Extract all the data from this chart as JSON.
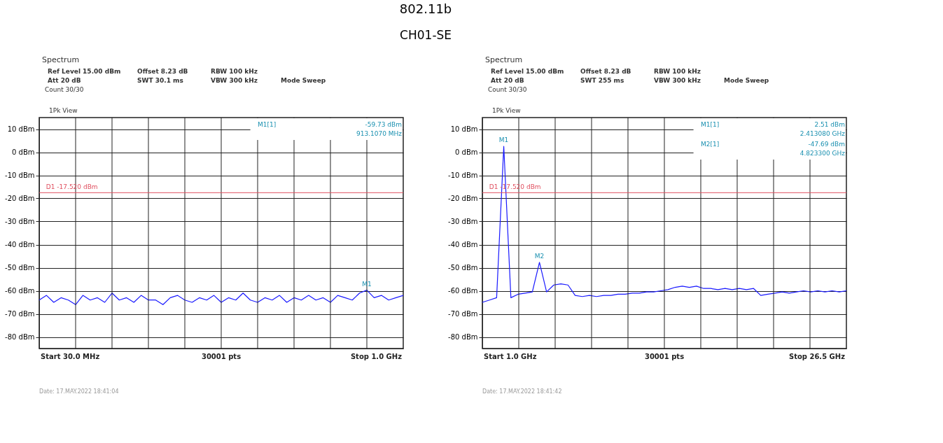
{
  "chart_data": [
    {
      "type": "line",
      "title": "802.11b",
      "subtitle": "CH01-SE",
      "categories": [
        null,
        null,
        null,
        null,
        null,
        null,
        null,
        null,
        null,
        null,
        null,
        null,
        null,
        null,
        null,
        null,
        null,
        null,
        null,
        null,
        null,
        null,
        null,
        null,
        null,
        null,
        null,
        null,
        null,
        null,
        null,
        null,
        null,
        null,
        null,
        null,
        null,
        null,
        null,
        null,
        null,
        null,
        null,
        null,
        null,
        null,
        null,
        null,
        null,
        null,
        null
      ],
      "series": [
        {
          "color": "#1a1aff",
          "values": [
            -64,
            -62,
            -65,
            -63,
            -64,
            -66,
            -62,
            -64,
            -63,
            -65,
            -61,
            -64,
            -63,
            -65,
            -62,
            -64,
            -64,
            -66,
            -63,
            -62,
            -64,
            -65,
            -63,
            -64,
            -62,
            -65,
            -63,
            -64,
            -61,
            -64,
            -65,
            -63,
            -64,
            -62,
            -65,
            -63,
            -64,
            -62,
            -64,
            -63,
            -65,
            -62,
            -63,
            -64,
            -61,
            -59.73,
            -63,
            -62,
            -64,
            -63,
            -62
          ]
        }
      ],
      "ylim": [
        -85,
        15
      ],
      "yticks": [
        {
          "value": 10,
          "label": "10 dBm"
        },
        {
          "value": 0,
          "label": "0 dBm"
        },
        {
          "value": -10,
          "label": "-10 dBm"
        },
        {
          "value": -20,
          "label": "-20 dBm"
        },
        {
          "value": -30,
          "label": "-30 dBm"
        },
        {
          "value": -40,
          "label": "-40 dBm"
        },
        {
          "value": -50,
          "label": "-50 dBm"
        },
        {
          "value": -60,
          "label": "-60 dBm"
        },
        {
          "value": -70,
          "label": "-70 dBm"
        },
        {
          "value": -80,
          "label": "-80 dBm"
        }
      ],
      "grid": true,
      "marker": "none",
      "line_style": "solid",
      "ref_lines": [
        {
          "axis": "y",
          "value": -17.52,
          "label": "D1 -17.520 dBm",
          "color": "#e05060"
        }
      ],
      "annotations": [
        "Spectrum",
        "Ref Level 15.00 dBm",
        "Offset 8.23 dB",
        "RBW 100 kHz",
        "Att 20 dB",
        "SWT 30.1 ms",
        "VBW 300 kHz",
        "Mode Sweep",
        "Count 30/30",
        "1Pk View",
        "M1[1]",
        "-59.73 dBm",
        "913.1070 MHz",
        "Start 30.0 MHz",
        "30001 pts",
        "Stop 1.0 GHz",
        "Date: 17.MAY.2022 18:41:04",
        {
          "text": "M1",
          "y": -59.73
        }
      ]
    },
    {
      "type": "line",
      "categories": [
        null,
        null,
        null,
        null,
        null,
        null,
        null,
        null,
        null,
        null,
        null,
        null,
        null,
        null,
        null,
        null,
        null,
        null,
        null,
        null,
        null,
        null,
        null,
        null,
        null,
        null,
        null,
        null,
        null,
        null,
        null,
        null,
        null,
        null,
        null,
        null,
        null,
        null,
        null,
        null,
        null,
        null,
        null,
        null,
        null,
        null,
        null,
        null,
        null,
        null,
        null,
        null
      ],
      "series": [
        {
          "color": "#1a1aff",
          "values": [
            -65,
            -64,
            -63,
            2.51,
            -63,
            -61.5,
            -61,
            -60.5,
            -47.69,
            -60.5,
            -57.5,
            -57,
            -57.5,
            -62,
            -62.5,
            -62,
            -62.5,
            -62,
            -62,
            -61.5,
            -61.5,
            -61,
            -61,
            -60.5,
            -60.5,
            -60,
            -59.5,
            -58.5,
            -58,
            -58.5,
            -58,
            -59,
            -59,
            -59.5,
            -59,
            -59.5,
            -59,
            -59.5,
            -59,
            -62,
            -61.5,
            -61,
            -60.5,
            -61,
            -60.5,
            -60,
            -60.5,
            -60,
            -60.5,
            -60,
            -60.5,
            -60
          ]
        }
      ],
      "ylim": [
        -85,
        15
      ],
      "yticks": [
        {
          "value": 10,
          "label": "10 dBm"
        },
        {
          "value": 0,
          "label": "0 dBm"
        },
        {
          "value": -10,
          "label": "-10 dBm"
        },
        {
          "value": -20,
          "label": "-20 dBm"
        },
        {
          "value": -30,
          "label": "-30 dBm"
        },
        {
          "value": -40,
          "label": "-40 dBm"
        },
        {
          "value": -50,
          "label": "-50 dBm"
        },
        {
          "value": -60,
          "label": "-60 dBm"
        },
        {
          "value": -70,
          "label": "-70 dBm"
        },
        {
          "value": -80,
          "label": "-80 dBm"
        }
      ],
      "grid": true,
      "marker": "none",
      "line_style": "solid",
      "ref_lines": [
        {
          "axis": "y",
          "value": -17.52,
          "label": "D1 -17.520 dBm",
          "color": "#e05060"
        }
      ],
      "annotations": [
        "Spectrum",
        "Ref Level 15.00 dBm",
        "Offset 8.23 dB",
        "RBW 100 kHz",
        "Att 20 dB",
        "SWT 255 ms",
        "VBW 300 kHz",
        "Mode Sweep",
        "Count 30/30",
        "1Pk View",
        "M1[1]",
        "2.51 dBm",
        "2.413080 GHz",
        "M2[1]",
        "-47.69 dBm",
        "4.823300 GHz",
        "Start 1.0 GHz",
        "30001 pts",
        "Stop 26.5 GHz",
        "Date: 17.MAY.2022 18:41:42",
        {
          "text": "M1",
          "y": 2.51
        },
        {
          "text": "M2",
          "y": -47.69
        }
      ]
    }
  ]
}
